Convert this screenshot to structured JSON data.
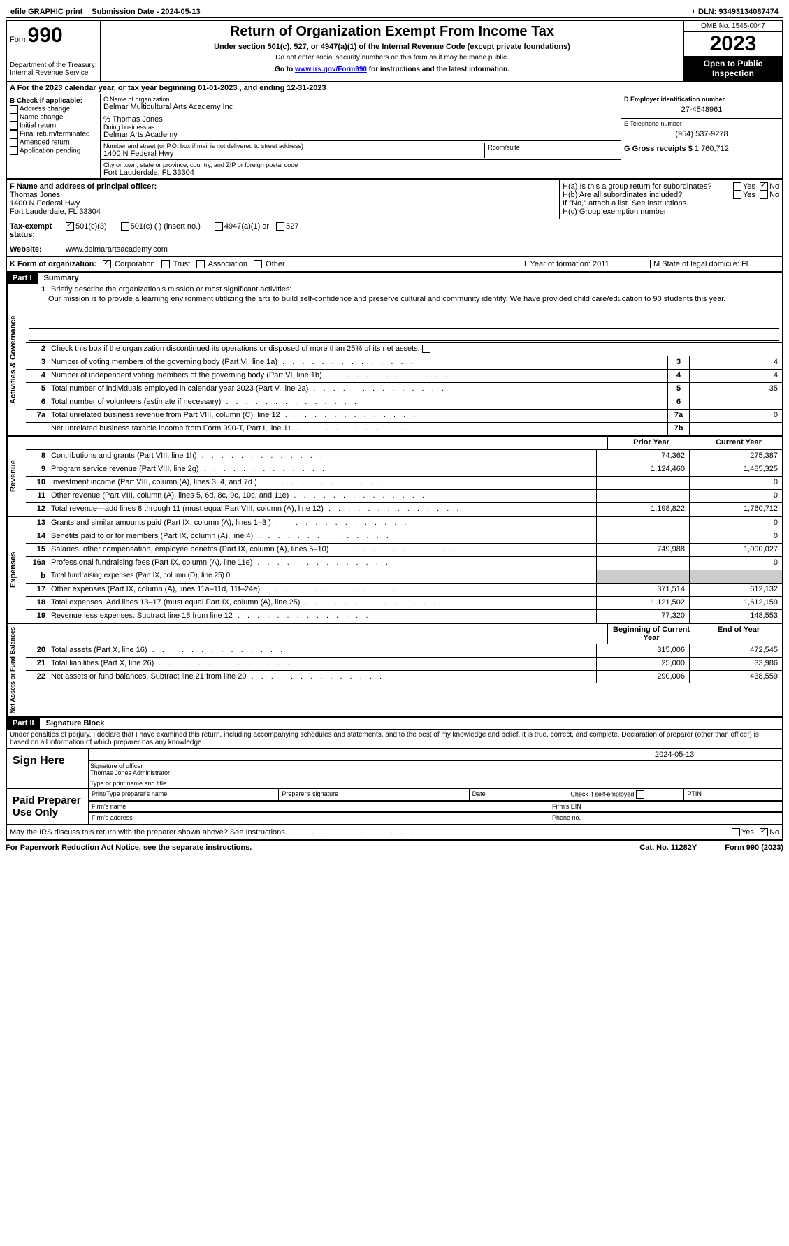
{
  "topbar": {
    "efile": "efile GRAPHIC print",
    "submission": "Submission Date - 2024-05-13",
    "dln": "DLN: 93493134087474"
  },
  "header": {
    "form_label": "Form",
    "form_num": "990",
    "dept": "Department of the Treasury",
    "irs": "Internal Revenue Service",
    "title": "Return of Organization Exempt From Income Tax",
    "subtitle": "Under section 501(c), 527, or 4947(a)(1) of the Internal Revenue Code (except private foundations)",
    "warn": "Do not enter social security numbers on this form as it may be made public.",
    "goto": "Go to ",
    "goto_link": "www.irs.gov/Form990",
    "goto_rest": " for instructions and the latest information.",
    "omb": "OMB No. 1545-0047",
    "year": "2023",
    "inspection": "Open to Public Inspection"
  },
  "rowA": "A For the 2023 calendar year, or tax year beginning 01-01-2023    , and ending 12-31-2023",
  "colB": {
    "label": "B Check if applicable:",
    "items": [
      "Address change",
      "Name change",
      "Initial return",
      "Final return/terminated",
      "Amended return",
      "Application pending"
    ]
  },
  "colC": {
    "name_label": "C Name of organization",
    "name": "Delmar Multicultural Arts Academy Inc",
    "care_of": "% Thomas Jones",
    "dba_label": "Doing business as",
    "dba": "Delmar Arts Academy",
    "street_label": "Number and street (or P.O. box if mail is not delivered to street address)",
    "street": "1400 N Federal Hwy",
    "room_label": "Room/suite",
    "city_label": "City or town, state or province, country, and ZIP or foreign postal code",
    "city": "Fort Lauderdale, FL  33304"
  },
  "colD": {
    "ein_label": "D Employer identification number",
    "ein": "27-4548961",
    "phone_label": "E Telephone number",
    "phone": "(954) 537-9278",
    "receipts_label": "G Gross receipts $",
    "receipts": "1,760,712"
  },
  "sectionF": {
    "label": "F Name and address of principal officer:",
    "name": "Thomas Jones",
    "street": "1400 N Federal Hwy",
    "city": "Fort Lauderdale, FL  33304"
  },
  "sectionH": {
    "ha": "H(a)  Is this a group return for subordinates?",
    "hb": "H(b)  Are all subordinates included?",
    "hb_note": "If \"No,\" attach a list. See instructions.",
    "hc": "H(c)  Group exemption number",
    "yes": "Yes",
    "no": "No"
  },
  "rowI": {
    "label": "Tax-exempt status:",
    "opt1": "501(c)(3)",
    "opt2": "501(c) (  ) (insert no.)",
    "opt3": "4947(a)(1) or",
    "opt4": "527"
  },
  "rowJ": {
    "label": "Website:",
    "value": "www.delmarartsacademy.com"
  },
  "rowK": {
    "label": "K Form of organization:",
    "opts": [
      "Corporation",
      "Trust",
      "Association",
      "Other"
    ],
    "L": "L Year of formation: 2011",
    "M": "M State of legal domicile: FL"
  },
  "part1": {
    "header": "Part I",
    "title": "Summary"
  },
  "governance": {
    "side": "Activities & Governance",
    "l1": "Briefly describe the organization's mission or most significant activities:",
    "l1text": "Our mission is to provide a learning environment utitlizing the arts to build self-confidence and preserve cultural and community identity. We have provided child care/education to 90 students this year.",
    "l2": "Check this box      if the organization discontinued its operations or disposed of more than 25% of its net assets.",
    "l3": "Number of voting members of the governing body (Part VI, line 1a)",
    "l3v": "4",
    "l4": "Number of independent voting members of the governing body (Part VI, line 1b)",
    "l4v": "4",
    "l5": "Total number of individuals employed in calendar year 2023 (Part V, line 2a)",
    "l5v": "35",
    "l6": "Total number of volunteers (estimate if necessary)",
    "l6v": "",
    "l7a": "Total unrelated business revenue from Part VIII, column (C), line 12",
    "l7av": "0",
    "l7b": "Net unrelated business taxable income from Form 990-T, Part I, line 11",
    "l7bv": ""
  },
  "yearcols": {
    "prior": "Prior Year",
    "current": "Current Year"
  },
  "revenue": {
    "side": "Revenue",
    "rows": [
      {
        "n": "8",
        "d": "Contributions and grants (Part VIII, line 1h)",
        "p": "74,362",
        "c": "275,387"
      },
      {
        "n": "9",
        "d": "Program service revenue (Part VIII, line 2g)",
        "p": "1,124,460",
        "c": "1,485,325"
      },
      {
        "n": "10",
        "d": "Investment income (Part VIII, column (A), lines 3, 4, and 7d )",
        "p": "",
        "c": "0"
      },
      {
        "n": "11",
        "d": "Other revenue (Part VIII, column (A), lines 5, 6d, 8c, 9c, 10c, and 11e)",
        "p": "",
        "c": "0"
      },
      {
        "n": "12",
        "d": "Total revenue—add lines 8 through 11 (must equal Part VIII, column (A), line 12)",
        "p": "1,198,822",
        "c": "1,760,712"
      }
    ]
  },
  "expenses": {
    "side": "Expenses",
    "rows": [
      {
        "n": "13",
        "d": "Grants and similar amounts paid (Part IX, column (A), lines 1–3 )",
        "p": "",
        "c": "0"
      },
      {
        "n": "14",
        "d": "Benefits paid to or for members (Part IX, column (A), line 4)",
        "p": "",
        "c": "0"
      },
      {
        "n": "15",
        "d": "Salaries, other compensation, employee benefits (Part IX, column (A), lines 5–10)",
        "p": "749,988",
        "c": "1,000,027"
      },
      {
        "n": "16a",
        "d": "Professional fundraising fees (Part IX, column (A), line 11e)",
        "p": "",
        "c": "0"
      },
      {
        "n": "b",
        "d": "Total fundraising expenses (Part IX, column (D), line 25) 0",
        "shaded": true
      },
      {
        "n": "17",
        "d": "Other expenses (Part IX, column (A), lines 11a–11d, 11f–24e)",
        "p": "371,514",
        "c": "612,132"
      },
      {
        "n": "18",
        "d": "Total expenses. Add lines 13–17 (must equal Part IX, column (A), line 25)",
        "p": "1,121,502",
        "c": "1,612,159"
      },
      {
        "n": "19",
        "d": "Revenue less expenses. Subtract line 18 from line 12",
        "p": "77,320",
        "c": "148,553"
      }
    ]
  },
  "netassets": {
    "side": "Net Assets or Fund Balances",
    "begin": "Beginning of Current Year",
    "end": "End of Year",
    "rows": [
      {
        "n": "20",
        "d": "Total assets (Part X, line 16)",
        "p": "315,006",
        "c": "472,545"
      },
      {
        "n": "21",
        "d": "Total liabilities (Part X, line 26)",
        "p": "25,000",
        "c": "33,986"
      },
      {
        "n": "22",
        "d": "Net assets or fund balances. Subtract line 21 from line 20",
        "p": "290,006",
        "c": "438,559"
      }
    ]
  },
  "part2": {
    "header": "Part II",
    "title": "Signature Block"
  },
  "perjury": "Under penalties of perjury, I declare that I have examined this return, including accompanying schedules and statements, and to the best of my knowledge and belief, it is true, correct, and complete. Declaration of preparer (other than officer) is based on all information of which preparer has any knowledge.",
  "sign": {
    "here": "Sign Here",
    "sig_label": "Signature of officer",
    "officer": "Thomas Jones  Administrator",
    "type_label": "Type or print name and title",
    "date": "2024-05-13"
  },
  "paid": {
    "label": "Paid Preparer Use Only",
    "name": "Print/Type preparer's name",
    "sig": "Preparer's signature",
    "date": "Date",
    "check": "Check        if self-employed",
    "ptin": "PTIN",
    "firm": "Firm's name",
    "ein": "Firm's EIN",
    "addr": "Firm's address",
    "phone": "Phone no."
  },
  "discuss": "May the IRS discuss this return with the preparer shown above? See Instructions.",
  "footer": {
    "left": "For Paperwork Reduction Act Notice, see the separate instructions.",
    "mid": "Cat. No. 11282Y",
    "right": "Form 990 (2023)"
  }
}
